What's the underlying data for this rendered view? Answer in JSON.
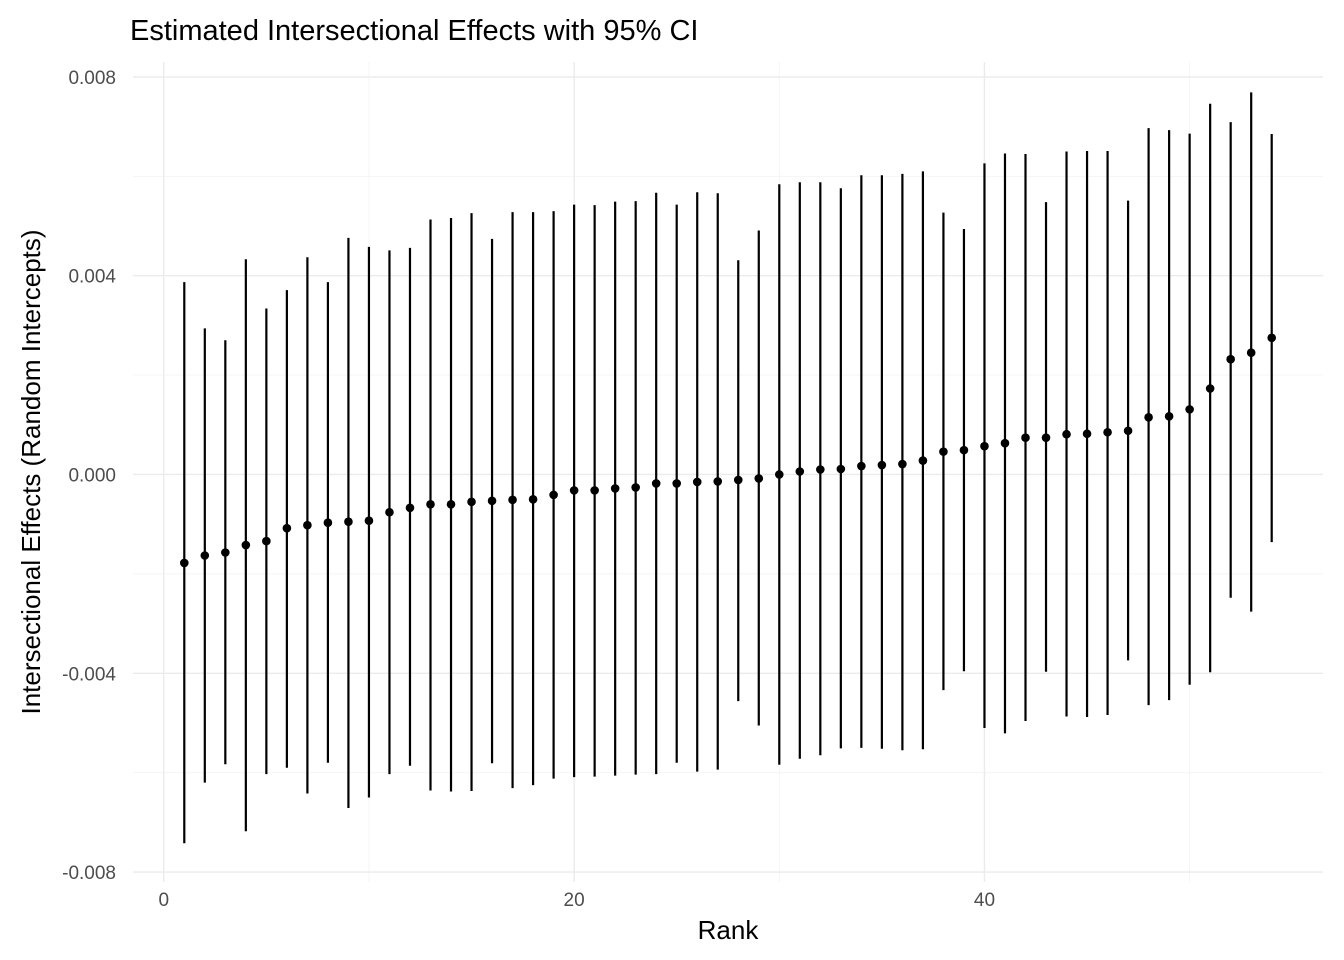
{
  "chart_data": {
    "type": "errorbar",
    "title": "Estimated Intersectional Effects with 95% CI",
    "xlabel": "Rank",
    "ylabel": "Intersectional Effects (Random Intercepts)",
    "xlim": [
      -1.5,
      56.5
    ],
    "ylim": [
      -0.0082,
      0.0083
    ],
    "x_ticks": [
      0,
      20,
      40
    ],
    "x_tick_labels": [
      "0",
      "20",
      "40"
    ],
    "x_minor_ticks": [
      10,
      30,
      50
    ],
    "y_ticks": [
      -0.008,
      -0.004,
      0.0,
      0.004,
      0.008
    ],
    "y_tick_labels": [
      "-0.008",
      "-0.004",
      "0.000",
      "0.004",
      "0.008"
    ],
    "y_minor_ticks": [
      -0.006,
      -0.002,
      0.002,
      0.006
    ],
    "grid": true,
    "legend": "none",
    "point_color": "#000000",
    "series": [
      {
        "x": [
          1,
          2,
          3,
          4,
          5,
          6,
          7,
          8,
          9,
          10,
          11,
          12,
          13,
          14,
          15,
          16,
          17,
          18,
          19,
          20,
          21,
          22,
          23,
          24,
          25,
          26,
          27,
          28,
          29,
          30,
          31,
          32,
          33,
          34,
          35,
          36,
          37,
          38,
          39,
          40,
          41,
          42,
          43,
          44,
          45,
          46,
          47,
          48,
          49,
          50,
          51,
          52,
          53,
          54
        ],
        "y": [
          -0.00178,
          -0.00163,
          -0.00157,
          -0.00142,
          -0.00134,
          -0.00108,
          -0.00102,
          -0.00097,
          -0.00095,
          -0.00093,
          -0.00076,
          -0.00067,
          -0.0006,
          -0.0006,
          -0.00055,
          -0.00053,
          -0.00051,
          -0.0005,
          -0.00041,
          -0.00032,
          -0.00032,
          -0.00028,
          -0.00026,
          -0.00018,
          -0.00018,
          -0.00015,
          -0.00014,
          -0.00011,
          -8e-05,
          0.0,
          6e-05,
          0.0001,
          0.00011,
          0.00017,
          0.00019,
          0.00021,
          0.00028,
          0.00046,
          0.00049,
          0.00057,
          0.00063,
          0.00074,
          0.00074,
          0.00081,
          0.00082,
          0.00085,
          0.00088,
          0.00115,
          0.00117,
          0.00131,
          0.00173,
          0.00232,
          0.00245,
          0.00275
        ],
        "lower": [
          -0.00742,
          -0.0062,
          -0.00583,
          -0.00718,
          -0.00603,
          -0.0059,
          -0.00642,
          -0.0058,
          -0.00671,
          -0.0065,
          -0.00603,
          -0.00586,
          -0.00636,
          -0.00638,
          -0.00637,
          -0.00581,
          -0.00631,
          -0.00625,
          -0.00612,
          -0.00609,
          -0.00608,
          -0.00606,
          -0.00604,
          -0.00603,
          -0.0058,
          -0.00598,
          -0.00594,
          -0.00456,
          -0.00505,
          -0.00584,
          -0.00572,
          -0.00565,
          -0.00551,
          -0.0055,
          -0.00552,
          -0.00555,
          -0.00553,
          -0.00434,
          -0.00396,
          -0.0051,
          -0.00521,
          -0.00496,
          -0.00397,
          -0.00487,
          -0.00488,
          -0.00484,
          -0.00374,
          -0.00464,
          -0.00454,
          -0.00423,
          -0.00398,
          -0.00248,
          -0.00276,
          -0.00136
        ],
        "upper": [
          0.00387,
          0.00294,
          0.0027,
          0.00433,
          0.00334,
          0.00371,
          0.00437,
          0.00387,
          0.00476,
          0.00458,
          0.00451,
          0.00456,
          0.00513,
          0.00516,
          0.00526,
          0.00474,
          0.00528,
          0.00528,
          0.0053,
          0.00543,
          0.00542,
          0.00549,
          0.0055,
          0.00567,
          0.00543,
          0.00568,
          0.00566,
          0.00431,
          0.00491,
          0.00584,
          0.00588,
          0.00588,
          0.00576,
          0.00602,
          0.00602,
          0.00605,
          0.0061,
          0.00527,
          0.00494,
          0.00626,
          0.00646,
          0.00645,
          0.00548,
          0.0065,
          0.00651,
          0.00651,
          0.00551,
          0.00697,
          0.00693,
          0.00686,
          0.00746,
          0.00709,
          0.00769,
          0.00685
        ]
      }
    ]
  }
}
